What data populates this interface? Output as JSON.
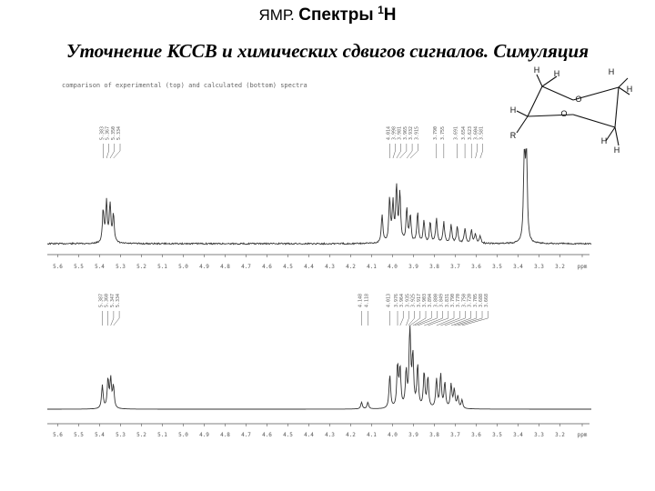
{
  "header": {
    "title_prefix": "ЯМР.",
    "title_main": "Спектры",
    "title_sup": "1",
    "title_nucleus": "H",
    "subtitle": "Уточнение КССВ и химических сдвигов сигналов. Симуляция"
  },
  "figure_caption": "comparison of experimental (top) and calculated (bottom) spectra",
  "molecule": {
    "atom_labels": [
      "H",
      "H",
      "H",
      "H",
      "O",
      "O",
      "H",
      "R",
      "H",
      "H"
    ]
  },
  "chart_data": [
    {
      "type": "line",
      "name": "experimental",
      "xlabel": "ppm",
      "x_reversed": true,
      "xlim": [
        5.65,
        3.05
      ],
      "ticks": [
        "5.6",
        "5.5",
        "5.4",
        "5.3",
        "5.2",
        "5.1",
        "5.0",
        "4.9",
        "4.8",
        "4.7",
        "4.6",
        "4.5",
        "4.4",
        "4.3",
        "4.2",
        "4.1",
        "4.0",
        "3.9",
        "3.8",
        "3.7",
        "3.6",
        "3.5",
        "3.4",
        "3.3",
        "3.2",
        "ppm"
      ],
      "peak_labels": [
        "5.383",
        "5.367",
        "5.350",
        "5.334",
        "4.014",
        "3.998",
        "3.981",
        "3.965",
        "3.932",
        "3.915",
        "3.790",
        "3.755",
        "3.691",
        "3.654",
        "3.623",
        "3.604",
        "3.581"
      ],
      "peaks": [
        {
          "x": 5.383,
          "y": 0.34
        },
        {
          "x": 5.367,
          "y": 0.42
        },
        {
          "x": 5.35,
          "y": 0.4
        },
        {
          "x": 5.334,
          "y": 0.3
        },
        {
          "x": 4.05,
          "y": 0.3
        },
        {
          "x": 4.014,
          "y": 0.46
        },
        {
          "x": 3.998,
          "y": 0.4
        },
        {
          "x": 3.981,
          "y": 0.58
        },
        {
          "x": 3.965,
          "y": 0.52
        },
        {
          "x": 3.932,
          "y": 0.36
        },
        {
          "x": 3.915,
          "y": 0.28
        },
        {
          "x": 3.88,
          "y": 0.32
        },
        {
          "x": 3.85,
          "y": 0.24
        },
        {
          "x": 3.82,
          "y": 0.22
        },
        {
          "x": 3.79,
          "y": 0.26
        },
        {
          "x": 3.755,
          "y": 0.22
        },
        {
          "x": 3.72,
          "y": 0.2
        },
        {
          "x": 3.691,
          "y": 0.18
        },
        {
          "x": 3.654,
          "y": 0.16
        },
        {
          "x": 3.623,
          "y": 0.14
        },
        {
          "x": 3.604,
          "y": 0.1
        },
        {
          "x": 3.581,
          "y": 0.08
        },
        {
          "x": 3.37,
          "y": 1.0
        },
        {
          "x": 3.36,
          "y": 1.0
        }
      ]
    },
    {
      "type": "line",
      "name": "calculated",
      "xlabel": "ppm",
      "x_reversed": true,
      "xlim": [
        5.65,
        3.05
      ],
      "ticks": [
        "5.6",
        "5.5",
        "5.4",
        "5.3",
        "5.2",
        "5.1",
        "5.0",
        "4.9",
        "4.8",
        "4.7",
        "4.6",
        "4.5",
        "4.4",
        "4.3",
        "4.2",
        "4.1",
        "4.0",
        "3.9",
        "3.8",
        "3.7",
        "3.6",
        "3.5",
        "3.4",
        "3.3",
        "3.2",
        "ppm"
      ],
      "peak_labels": [
        "5.387",
        "5.360",
        "5.347",
        "5.334",
        "4.148",
        "4.118",
        "4.013",
        "3.976",
        "3.964",
        "3.935",
        "3.925",
        "3.917",
        "3.903",
        "3.894",
        "3.880",
        "3.849",
        "3.831",
        "3.790",
        "3.770",
        "3.750",
        "3.720",
        "3.705",
        "3.688",
        "3.668"
      ],
      "peaks": [
        {
          "x": 5.387,
          "y": 0.28
        },
        {
          "x": 5.36,
          "y": 0.34
        },
        {
          "x": 5.347,
          "y": 0.34
        },
        {
          "x": 5.334,
          "y": 0.26
        },
        {
          "x": 4.148,
          "y": 0.08
        },
        {
          "x": 4.118,
          "y": 0.08
        },
        {
          "x": 4.013,
          "y": 0.4
        },
        {
          "x": 3.976,
          "y": 0.5
        },
        {
          "x": 3.964,
          "y": 0.46
        },
        {
          "x": 3.935,
          "y": 0.42
        },
        {
          "x": 3.917,
          "y": 1.0
        },
        {
          "x": 3.903,
          "y": 0.6
        },
        {
          "x": 3.88,
          "y": 0.5
        },
        {
          "x": 3.849,
          "y": 0.42
        },
        {
          "x": 3.831,
          "y": 0.36
        },
        {
          "x": 3.79,
          "y": 0.34
        },
        {
          "x": 3.77,
          "y": 0.4
        },
        {
          "x": 3.75,
          "y": 0.3
        },
        {
          "x": 3.72,
          "y": 0.28
        },
        {
          "x": 3.705,
          "y": 0.22
        },
        {
          "x": 3.688,
          "y": 0.14
        },
        {
          "x": 3.668,
          "y": 0.1
        }
      ]
    }
  ]
}
